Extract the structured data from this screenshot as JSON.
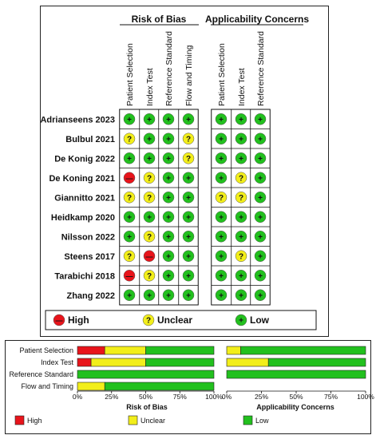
{
  "domains_rob": [
    "Patient Selection",
    "Index Test",
    "Reference Standard",
    "Flow and Timing"
  ],
  "domains_app": [
    "Patient Selection",
    "Index Test",
    "Reference Standard"
  ],
  "headers": {
    "rob": "Risk of Bias",
    "app": "Applicability Concerns"
  },
  "glyph": {
    "high": "—",
    "unclear": "?",
    "low": "+"
  },
  "studies": [
    {
      "name": "Adrianseens 2023",
      "rob": [
        "low",
        "low",
        "low",
        "low"
      ],
      "app": [
        "low",
        "low",
        "low"
      ]
    },
    {
      "name": "Bulbul 2021",
      "rob": [
        "unclear",
        "low",
        "low",
        "unclear"
      ],
      "app": [
        "low",
        "low",
        "low"
      ]
    },
    {
      "name": "De Konig 2022",
      "rob": [
        "low",
        "low",
        "low",
        "unclear"
      ],
      "app": [
        "low",
        "low",
        "low"
      ]
    },
    {
      "name": "De Koning 2021",
      "rob": [
        "high",
        "unclear",
        "low",
        "low"
      ],
      "app": [
        "low",
        "unclear",
        "low"
      ]
    },
    {
      "name": "Giannitto 2021",
      "rob": [
        "unclear",
        "unclear",
        "low",
        "low"
      ],
      "app": [
        "unclear",
        "unclear",
        "low"
      ]
    },
    {
      "name": "Heidkamp 2020",
      "rob": [
        "low",
        "low",
        "low",
        "low"
      ],
      "app": [
        "low",
        "low",
        "low"
      ]
    },
    {
      "name": "Nilsson 2022",
      "rob": [
        "low",
        "unclear",
        "low",
        "low"
      ],
      "app": [
        "low",
        "low",
        "low"
      ]
    },
    {
      "name": "Steens 2017",
      "rob": [
        "unclear",
        "high",
        "low",
        "low"
      ],
      "app": [
        "low",
        "unclear",
        "low"
      ]
    },
    {
      "name": "Tarabichi 2018",
      "rob": [
        "high",
        "unclear",
        "low",
        "low"
      ],
      "app": [
        "low",
        "low",
        "low"
      ]
    },
    {
      "name": "Zhang 2022",
      "rob": [
        "low",
        "low",
        "low",
        "low"
      ],
      "app": [
        "low",
        "low",
        "low"
      ]
    }
  ],
  "legend": {
    "high": "High",
    "unclear": "Unclear",
    "low": "Low"
  },
  "colors": {
    "high": "#e8141b",
    "unclear": "#f2ee1a",
    "low": "#22c01e",
    "glyph": "#111111"
  },
  "chart_data": {
    "type": "bar",
    "orientation": "horizontal-stacked",
    "categories": [
      "Patient Selection",
      "Index Test",
      "Reference Standard",
      "Flow and Timing"
    ],
    "panels": [
      {
        "xlabel": "Risk of Bias",
        "series": [
          {
            "name": "High",
            "values": [
              20,
              10,
              0,
              0
            ]
          },
          {
            "name": "Unclear",
            "values": [
              30,
              40,
              0,
              20
            ]
          },
          {
            "name": "Low",
            "values": [
              50,
              50,
              100,
              80
            ]
          }
        ]
      },
      {
        "xlabel": "Applicability Concerns",
        "series": [
          {
            "name": "High",
            "values": [
              0,
              0,
              0,
              null
            ]
          },
          {
            "name": "Unclear",
            "values": [
              10,
              30,
              0,
              null
            ]
          },
          {
            "name": "Low",
            "values": [
              90,
              70,
              100,
              null
            ]
          }
        ]
      }
    ],
    "xticks": [
      "0%",
      "25%",
      "50%",
      "75%",
      "100%"
    ],
    "xlim": [
      0,
      100
    ],
    "legend": [
      "High",
      "Unclear",
      "Low"
    ]
  }
}
